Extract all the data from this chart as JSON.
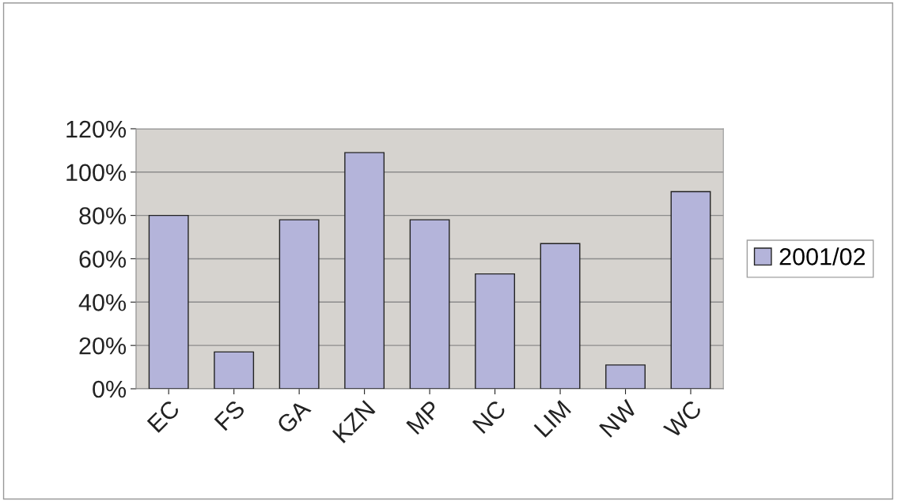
{
  "chart_data": {
    "type": "bar",
    "categories": [
      "EC",
      "FS",
      "GA",
      "KZN",
      "MP",
      "NC",
      "LIM",
      "NW",
      "WC"
    ],
    "series": [
      {
        "name": "2001/02",
        "color": "#b4b4da",
        "values": [
          80,
          17,
          78,
          109,
          78,
          53,
          67,
          11,
          91
        ]
      }
    ],
    "ylim": [
      0,
      120
    ],
    "yticks": [
      {
        "value": 0,
        "label": "0%"
      },
      {
        "value": 20,
        "label": "20%"
      },
      {
        "value": 40,
        "label": "40%"
      },
      {
        "value": 60,
        "label": "60%"
      },
      {
        "value": 80,
        "label": "80%"
      },
      {
        "value": 100,
        "label": "100%"
      },
      {
        "value": 120,
        "label": "120%"
      }
    ],
    "grid": "y",
    "legend": "right"
  }
}
